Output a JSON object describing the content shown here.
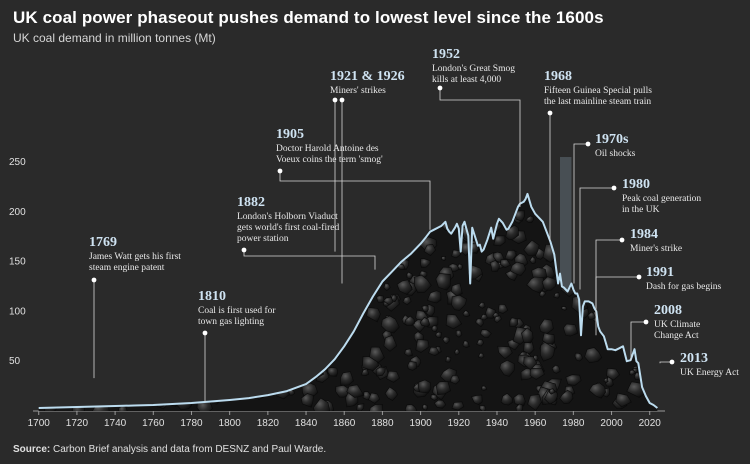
{
  "header": {
    "title": "UK coal power phaseout pushes demand to lowest level since the 1600s",
    "subtitle": "UK coal demand in million tonnes (Mt)"
  },
  "footer": {
    "source_label": "Source:",
    "source_text": "Carbon Brief analysis and data from DESNZ and Paul Warde."
  },
  "colors": {
    "background": "#2a2a2a",
    "line": "#bcdcef",
    "annotation_year": "#cfe3f2",
    "annotation_text": "#e8e8e8",
    "oil_shock_bar": "#4a5156",
    "coal_dark": "#141414",
    "coal_light": "#4a4a4a"
  },
  "chart_data": {
    "type": "area",
    "title": "UK coal power phaseout pushes demand to lowest level since the 1600s",
    "ylabel": "UK coal demand in million tonnes (Mt)",
    "xlim": [
      1697,
      2028
    ],
    "ylim": [
      0,
      250
    ],
    "x_ticks": [
      1700,
      1720,
      1740,
      1760,
      1780,
      1800,
      1820,
      1840,
      1860,
      1880,
      1900,
      1920,
      1940,
      1960,
      1980,
      2000,
      2020
    ],
    "y_ticks": [
      50,
      100,
      150,
      200,
      250
    ],
    "grid": false,
    "series": [
      {
        "x": [
          1700,
          1710,
          1720,
          1730,
          1740,
          1750,
          1760,
          1770,
          1780,
          1790,
          1800,
          1810,
          1820,
          1830,
          1840,
          1845,
          1850,
          1855,
          1860,
          1865,
          1870,
          1875,
          1880,
          1885,
          1890,
          1895,
          1900,
          1903,
          1905,
          1907,
          1910,
          1911,
          1913,
          1914,
          1915,
          1916,
          1918,
          1919,
          1920,
          1921,
          1922,
          1923,
          1925,
          1926,
          1927,
          1929,
          1930,
          1931,
          1932,
          1933,
          1935,
          1937,
          1938,
          1940,
          1941,
          1943,
          1945,
          1946,
          1948,
          1950,
          1951,
          1952,
          1954,
          1955,
          1956,
          1958,
          1960,
          1962,
          1964,
          1966,
          1968,
          1970,
          1972,
          1973,
          1974,
          1975,
          1977,
          1979,
          1980,
          1981,
          1982,
          1983,
          1984,
          1985,
          1986,
          1988,
          1990,
          1991,
          1992,
          1993,
          1994,
          1996,
          1998,
          2000,
          2002,
          2004,
          2006,
          2008,
          2010,
          2012,
          2013,
          2014,
          2015,
          2016,
          2018,
          2020,
          2022,
          2024
        ],
        "values": [
          3,
          3.5,
          4,
          4.5,
          5,
          5.5,
          6,
          7,
          8,
          9.5,
          11,
          13,
          16,
          20,
          27,
          34,
          42,
          52,
          65,
          80,
          98,
          115,
          130,
          140,
          150,
          158,
          168,
          175,
          180,
          182,
          185,
          186,
          190,
          183,
          180,
          178,
          184,
          188,
          183,
          160,
          186,
          190,
          176,
          128,
          184,
          172,
          166,
          167,
          160,
          162,
          172,
          184,
          173,
          188,
          193,
          189,
          182,
          183,
          190,
          200,
          205,
          208,
          210,
          213,
          218,
          205,
          198,
          194,
          190,
          180,
          170,
          157,
          128,
          138,
          125,
          124,
          120,
          128,
          122,
          118,
          118,
          112,
          76,
          105,
          110,
          110,
          108,
          103,
          100,
          85,
          80,
          75,
          62,
          62,
          61,
          63,
          65,
          50,
          51,
          62,
          50,
          48,
          36,
          24,
          15,
          8,
          6,
          3
        ]
      }
    ],
    "annotations": [
      {
        "year_label": "1769",
        "text": [
          "James Watt gets his first",
          "steam engine patent"
        ],
        "x": 1726,
        "y": 33
      },
      {
        "year_label": "1810",
        "text": [
          "Coal is first used for",
          "town gas lighting"
        ],
        "x": 1783,
        "y": 9
      },
      {
        "year_label": "1882",
        "text": [
          "London's Holborn Viaduct",
          "gets world's first coal-fired",
          "power station"
        ],
        "x": 1807,
        "y": 142
      },
      {
        "year_label": "1905",
        "text": [
          "Doctor Harold Antoine des",
          "Voeux coins the term 'smog'"
        ],
        "x": 1830,
        "y": 182
      },
      {
        "year_label": "1921 & 1926",
        "text": [
          "Miners' strikes"
        ],
        "x": 1855,
        "y": 160
      },
      {
        "year_label": "1952",
        "text": [
          "London's Great Smog",
          "kills at least 4,000"
        ],
        "x": 1908,
        "y": 205
      },
      {
        "year_label": "1968",
        "text": [
          "Fifteen Guinea Special pulls",
          "the last mainline steam train"
        ],
        "x": 1969,
        "y": 170
      },
      {
        "year_label": "1970s",
        "text": [
          "Oil shocks"
        ],
        "x": 1974,
        "y": 128
      },
      {
        "year_label": "1980",
        "text": [
          "Peak coal generation",
          "in the UK"
        ],
        "x": 1980,
        "y": 122
      },
      {
        "year_label": "1984",
        "text": [
          "Miner's strike"
        ],
        "x": 1984,
        "y": 76
      },
      {
        "year_label": "1991",
        "text": [
          "Dash for gas begins"
        ],
        "x": 1991,
        "y": 103
      },
      {
        "year_label": "2008",
        "text": [
          "UK Climate",
          "Change Act"
        ],
        "x": 2008,
        "y": 51
      },
      {
        "year_label": "2013",
        "text": [
          "UK Energy Act"
        ],
        "x": 2013,
        "y": 48
      }
    ]
  }
}
